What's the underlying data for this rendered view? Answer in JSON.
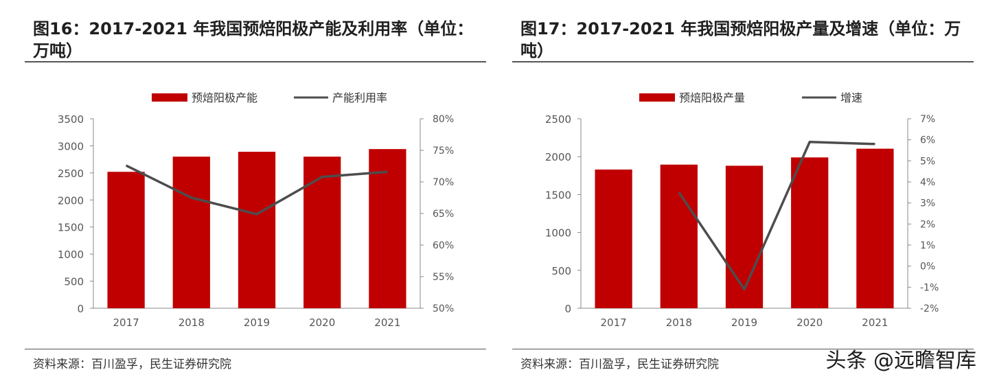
{
  "watermark": "头条 @远瞻智库",
  "chart_data": [
    {
      "type": "bar",
      "title": "图16：2017-2021 年我国预焙阳极产能及利用率（单位：万吨）",
      "source": "资料来源：百川盈孚，民生证券研究院",
      "categories": [
        "2017",
        "2018",
        "2019",
        "2020",
        "2021"
      ],
      "series": [
        {
          "name": "预焙阳极产能",
          "type": "bar",
          "axis": "left",
          "color": "#c00000",
          "values": [
            2520,
            2800,
            2890,
            2800,
            2940
          ]
        },
        {
          "name": "产能利用率",
          "type": "line",
          "axis": "right",
          "color": "#4d4d4d",
          "values": [
            72.6,
            67.5,
            64.9,
            70.8,
            71.6
          ]
        }
      ],
      "ylim": [
        0,
        3500
      ],
      "yticks": [
        "0",
        "500",
        "1000",
        "1500",
        "2000",
        "2500",
        "3000",
        "3500"
      ],
      "y2lim": [
        50,
        80
      ],
      "y2ticks": [
        "50%",
        "55%",
        "60%",
        "65%",
        "70%",
        "75%",
        "80%"
      ],
      "legend": "top"
    },
    {
      "type": "bar",
      "title": "图17：2017-2021 年我国预焙阳极产量及增速（单位：万吨）",
      "source": "资料来源：百川盈孚，民生证券研究院",
      "categories": [
        "2017",
        "2018",
        "2019",
        "2020",
        "2021"
      ],
      "series": [
        {
          "name": "预焙阳极产量",
          "type": "bar",
          "axis": "left",
          "color": "#c00000",
          "values": [
            1830,
            1895,
            1880,
            1990,
            2105
          ]
        },
        {
          "name": "增速",
          "type": "line",
          "axis": "right",
          "color": "#4d4d4d",
          "values": [
            null,
            3.5,
            -1.1,
            5.9,
            5.8
          ]
        }
      ],
      "ylim": [
        0,
        2500
      ],
      "yticks": [
        "0",
        "500",
        "1000",
        "1500",
        "2000",
        "2500"
      ],
      "y2lim": [
        -2,
        7
      ],
      "y2ticks": [
        "-2%",
        "-1%",
        "0%",
        "1%",
        "2%",
        "3%",
        "4%",
        "5%",
        "6%",
        "7%"
      ],
      "legend": "top"
    }
  ]
}
